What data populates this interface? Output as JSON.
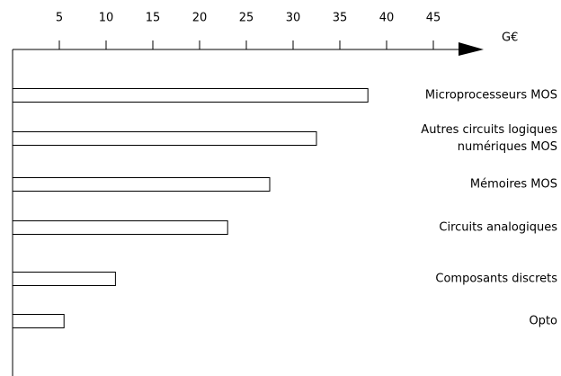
{
  "chart_data": {
    "type": "bar",
    "orientation": "horizontal",
    "x_label": "G€",
    "categories": [
      "Microprocesseurs MOS",
      "Autres circuits logiques numériques MOS",
      "Mémoires MOS",
      "Circuits analogiques",
      "Composants discrets",
      "Opto"
    ],
    "values": [
      38,
      32.5,
      27.5,
      23,
      11,
      5.5
    ],
    "color": "#ffffff",
    "xlim": [
      0,
      50
    ],
    "xticks": [
      5,
      10,
      15,
      20,
      25,
      30,
      35,
      40,
      45
    ]
  }
}
